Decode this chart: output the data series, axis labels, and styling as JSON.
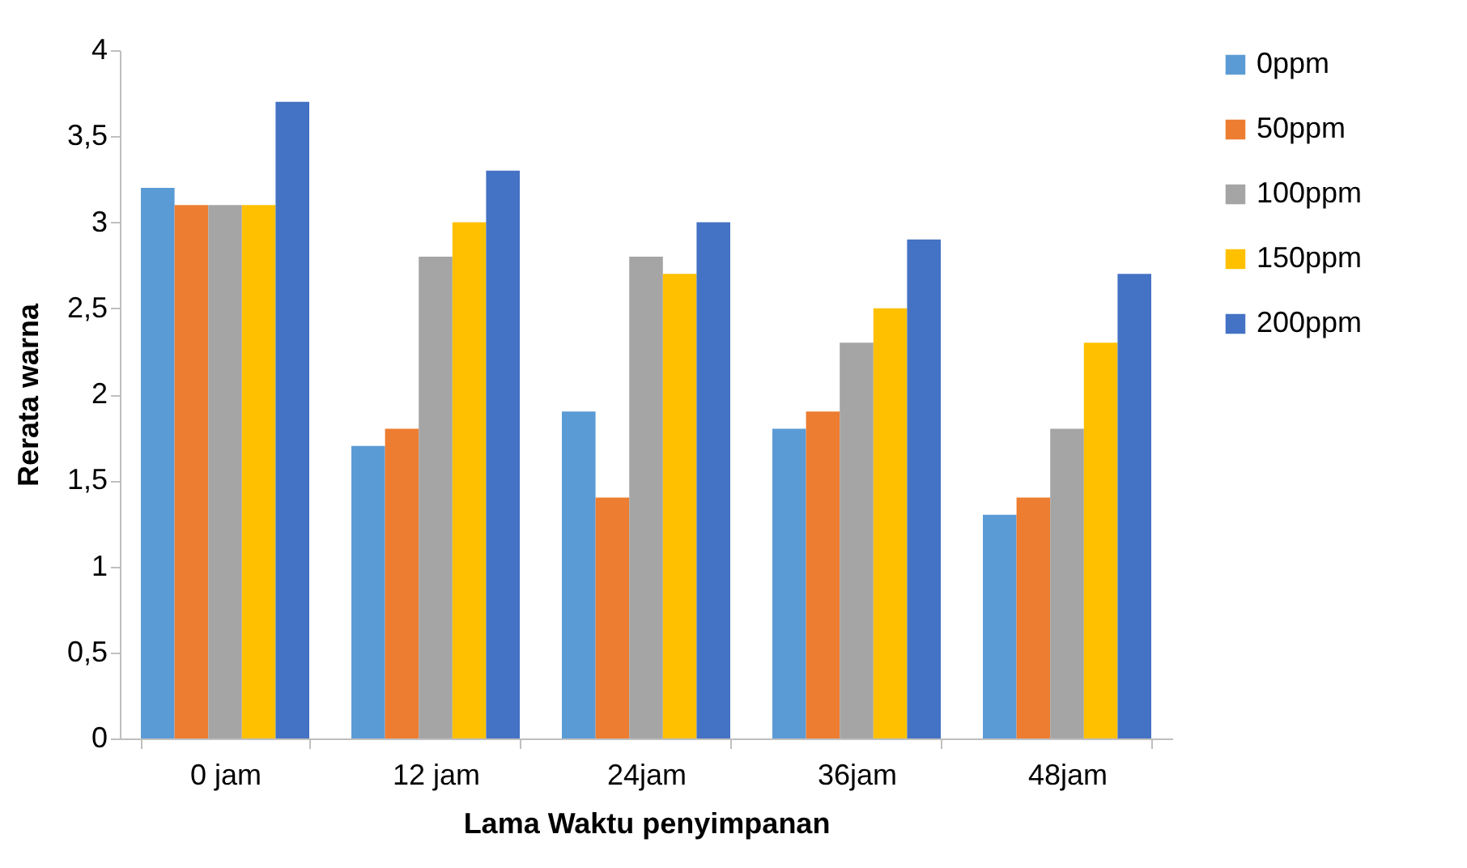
{
  "chart_data": {
    "type": "bar",
    "xlabel": "Lama Waktu penyimpanan",
    "ylabel": "Rerata warna",
    "categories": [
      "0 jam",
      "12 jam",
      "24jam",
      "36jam",
      "48jam"
    ],
    "series": [
      {
        "name": "0ppm",
        "color": "#5b9bd5",
        "values": [
          3.2,
          1.7,
          1.9,
          1.8,
          1.3
        ]
      },
      {
        "name": "50ppm",
        "color": "#ed7d31",
        "values": [
          3.1,
          1.8,
          1.4,
          1.9,
          1.4
        ]
      },
      {
        "name": "100ppm",
        "color": "#a5a5a5",
        "values": [
          3.1,
          2.8,
          2.8,
          2.3,
          1.8
        ]
      },
      {
        "name": "150ppm",
        "color": "#ffc000",
        "values": [
          3.1,
          3.0,
          2.7,
          2.5,
          2.3
        ]
      },
      {
        "name": "200ppm",
        "color": "#4472c4",
        "values": [
          3.7,
          3.3,
          3.0,
          2.9,
          2.7
        ]
      }
    ],
    "ylim": [
      0,
      4
    ],
    "yticks": [
      0,
      {
        "value": 0.5,
        "label": "0,5"
      },
      1,
      {
        "value": 1.5,
        "label": "1,5"
      },
      2,
      {
        "value": 2.5,
        "label": "2,5"
      },
      3,
      {
        "value": 3.5,
        "label": "3,5"
      },
      4
    ],
    "grid": false,
    "legend": "right"
  }
}
